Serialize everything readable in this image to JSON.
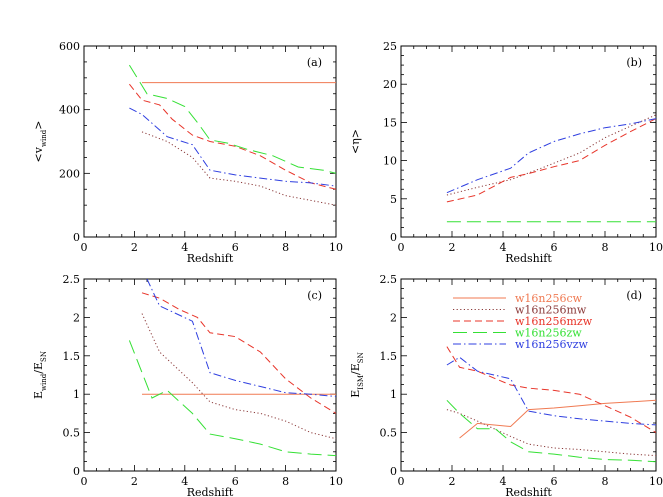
{
  "colors": {
    "cw": "#f07a52",
    "mw": "#8b3a3a",
    "mzw": "#e8352a",
    "zw": "#35e035",
    "vzw": "#2f3fe0"
  },
  "legend": [
    {
      "key": "cw",
      "label": "w16n256cw",
      "dash": "solid"
    },
    {
      "key": "mw",
      "label": "w16n256mw",
      "dash": "dot"
    },
    {
      "key": "mzw",
      "label": "w16n256mzw",
      "dash": "dash"
    },
    {
      "key": "zw",
      "label": "w16n256zw",
      "dash": "longdash"
    },
    {
      "key": "vzw",
      "label": "w16n256vzw",
      "dash": "dashdot"
    }
  ],
  "chart_data": [
    {
      "type": "line",
      "panel": "(a)",
      "xlabel": "Redshift",
      "ylabel": "<v_wind>",
      "ylabel_main": "<v",
      "ylabel_sub": "wind",
      "ylabel_end": ">",
      "xlim": [
        0,
        10
      ],
      "ylim": [
        0,
        600
      ],
      "xticks": [
        0,
        2,
        4,
        6,
        8,
        10
      ],
      "yticks": [
        0,
        200,
        400,
        600
      ],
      "series": [
        {
          "key": "cw",
          "name": "w16n256cw",
          "x": [
            2.3,
            10
          ],
          "y": [
            485,
            485
          ]
        },
        {
          "key": "mw",
          "name": "w16n256mw",
          "x": [
            2.3,
            3.3,
            4.3,
            5.0,
            6.0,
            7.0,
            8.0,
            9.0,
            10.0
          ],
          "y": [
            330,
            300,
            250,
            185,
            175,
            160,
            130,
            115,
            100
          ]
        },
        {
          "key": "mzw",
          "name": "w16n256mzw",
          "x": [
            1.8,
            2.3,
            3.0,
            3.5,
            4.3,
            5.0,
            6.0,
            7.0,
            8.0,
            9.0,
            10.0
          ],
          "y": [
            480,
            430,
            415,
            370,
            320,
            300,
            285,
            255,
            210,
            170,
            150
          ]
        },
        {
          "key": "zw",
          "name": "w16n256zw",
          "x": [
            1.8,
            2.5,
            3.3,
            4.0,
            4.5,
            5.0,
            5.7,
            6.5,
            7.5,
            8.5,
            9.5,
            10.0
          ],
          "y": [
            540,
            450,
            435,
            410,
            360,
            305,
            295,
            275,
            255,
            220,
            210,
            200
          ]
        },
        {
          "key": "vzw",
          "name": "w16n256vzw",
          "x": [
            1.8,
            2.3,
            3.3,
            4.3,
            5.0,
            6.0,
            7.0,
            8.0,
            9.0,
            10.0
          ],
          "y": [
            405,
            385,
            315,
            290,
            210,
            195,
            185,
            175,
            170,
            160
          ]
        }
      ]
    },
    {
      "type": "line",
      "panel": "(b)",
      "xlabel": "Redshift",
      "ylabel": "<η>",
      "ylabel_main": "<η>",
      "xlim": [
        0,
        10
      ],
      "ylim": [
        0,
        25
      ],
      "xticks": [
        0,
        2,
        4,
        6,
        8,
        10
      ],
      "yticks": [
        0,
        5,
        10,
        15,
        20,
        25
      ],
      "series": [
        {
          "key": "mw",
          "name": "w16n256mw",
          "x": [
            1.8,
            3.0,
            4.3,
            5.5,
            7.0,
            8.0,
            9.0,
            10.0
          ],
          "y": [
            5.5,
            6.5,
            7.5,
            9.0,
            11.0,
            13.0,
            14.5,
            16.0
          ]
        },
        {
          "key": "mzw",
          "name": "w16n256mzw",
          "x": [
            1.8,
            3.0,
            4.3,
            5.0,
            6.0,
            7.0,
            8.0,
            9.0,
            10.0
          ],
          "y": [
            4.6,
            5.5,
            7.8,
            8.3,
            9.2,
            10.0,
            12.0,
            13.8,
            15.5
          ]
        },
        {
          "key": "zw",
          "name": "w16n256zw",
          "x": [
            1.8,
            10.0
          ],
          "y": [
            2.0,
            2.0
          ]
        },
        {
          "key": "vzw",
          "name": "w16n256vzw",
          "x": [
            1.8,
            3.0,
            4.3,
            5.0,
            6.0,
            7.0,
            8.0,
            9.0,
            10.0
          ],
          "y": [
            5.8,
            7.5,
            9.0,
            11.0,
            12.5,
            13.5,
            14.3,
            14.8,
            15.5
          ]
        }
      ]
    },
    {
      "type": "line",
      "panel": "(c)",
      "xlabel": "Redshift",
      "ylabel": "E_wind/E_SN",
      "ylabel_main": "E",
      "ylabel_sub": "wind",
      "ylabel_mid": "/E",
      "ylabel_sub2": "SN",
      "xlim": [
        0,
        10
      ],
      "ylim": [
        0,
        2.5
      ],
      "xticks": [
        0,
        2,
        4,
        6,
        8,
        10
      ],
      "yticks": [
        0,
        0.5,
        1,
        1.5,
        2,
        2.5
      ],
      "ytick_labels": [
        "0",
        "0.5",
        "1",
        "1.5",
        "2",
        "2.5"
      ],
      "series": [
        {
          "key": "cw",
          "name": "w16n256cw",
          "x": [
            2.3,
            10.0
          ],
          "y": [
            1.0,
            1.0
          ]
        },
        {
          "key": "mw",
          "name": "w16n256mw",
          "x": [
            2.3,
            3.0,
            4.3,
            5.0,
            6.0,
            7.0,
            8.0,
            9.0,
            10.0
          ],
          "y": [
            2.05,
            1.55,
            1.15,
            0.9,
            0.8,
            0.75,
            0.65,
            0.5,
            0.42
          ]
        },
        {
          "key": "mzw",
          "name": "w16n256mzw",
          "x": [
            2.3,
            3.0,
            3.8,
            4.5,
            5.0,
            6.0,
            7.0,
            8.0,
            9.0,
            10.0
          ],
          "y": [
            2.32,
            2.25,
            2.1,
            2.0,
            1.8,
            1.75,
            1.55,
            1.2,
            0.95,
            0.75
          ]
        },
        {
          "key": "zw",
          "name": "w16n256zw",
          "x": [
            1.8,
            2.7,
            3.3,
            4.3,
            5.0,
            6.0,
            7.0,
            8.0,
            9.0,
            10.0
          ],
          "y": [
            1.7,
            0.95,
            1.05,
            0.75,
            0.48,
            0.42,
            0.35,
            0.25,
            0.22,
            0.2
          ]
        },
        {
          "key": "vzw",
          "name": "w16n256vzw",
          "x": [
            2.5,
            3.0,
            4.3,
            5.0,
            6.0,
            7.0,
            8.0,
            9.0,
            10.0
          ],
          "y": [
            2.5,
            2.15,
            1.95,
            1.28,
            1.18,
            1.1,
            1.02,
            1.0,
            0.97
          ]
        }
      ]
    },
    {
      "type": "line",
      "panel": "(d)",
      "xlabel": "Redshift",
      "ylabel": "E_ISM/E_SN",
      "ylabel_main": "E",
      "ylabel_sub": "ISM",
      "ylabel_mid": "/E",
      "ylabel_sub2": "SN",
      "xlim": [
        0,
        10
      ],
      "ylim": [
        0,
        2.5
      ],
      "xticks": [
        0,
        2,
        4,
        6,
        8,
        10
      ],
      "yticks": [
        0,
        0.5,
        1,
        1.5,
        2,
        2.5
      ],
      "ytick_labels": [
        "0",
        "0.5",
        "1",
        "1.5",
        "2",
        "2.5"
      ],
      "legend_position": "upper-right",
      "series": [
        {
          "key": "cw",
          "name": "w16n256cw",
          "x": [
            2.3,
            3.0,
            4.3,
            5.0,
            6.0,
            7.0,
            8.0,
            9.0,
            10.0
          ],
          "y": [
            0.43,
            0.62,
            0.58,
            0.8,
            0.82,
            0.85,
            0.88,
            0.9,
            0.92
          ]
        },
        {
          "key": "mw",
          "name": "w16n256mw",
          "x": [
            1.8,
            2.3,
            3.0,
            4.3,
            5.0,
            6.0,
            7.0,
            8.0,
            9.0,
            10.0
          ],
          "y": [
            0.8,
            0.75,
            0.65,
            0.45,
            0.35,
            0.3,
            0.28,
            0.25,
            0.22,
            0.2
          ]
        },
        {
          "key": "mzw",
          "name": "w16n256mzw",
          "x": [
            1.8,
            2.3,
            3.0,
            4.3,
            5.0,
            6.0,
            7.0,
            8.0,
            9.0,
            10.0
          ],
          "y": [
            1.62,
            1.35,
            1.3,
            1.12,
            1.08,
            1.05,
            1.0,
            0.85,
            0.7,
            0.5
          ]
        },
        {
          "key": "zw",
          "name": "w16n256zw",
          "x": [
            1.8,
            2.3,
            3.0,
            3.7,
            4.3,
            5.0,
            6.0,
            7.0,
            8.0,
            9.0,
            10.0
          ],
          "y": [
            0.92,
            0.75,
            0.55,
            0.55,
            0.38,
            0.25,
            0.22,
            0.18,
            0.15,
            0.14,
            0.12
          ]
        },
        {
          "key": "vzw",
          "name": "w16n256vzw",
          "x": [
            1.8,
            2.3,
            3.0,
            4.3,
            5.0,
            6.0,
            7.0,
            8.0,
            9.0,
            10.0
          ],
          "y": [
            1.38,
            1.48,
            1.3,
            1.2,
            0.78,
            0.72,
            0.68,
            0.65,
            0.62,
            0.6
          ]
        }
      ]
    }
  ]
}
